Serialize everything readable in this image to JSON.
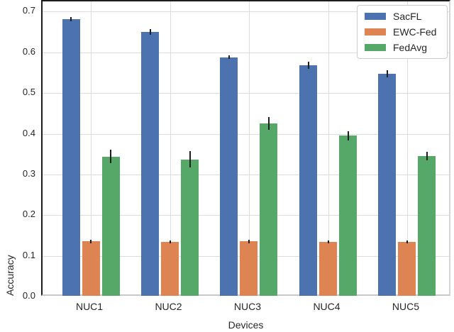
{
  "chart_data": {
    "type": "bar",
    "title": "",
    "xlabel": "Devices",
    "ylabel": "Accuracy",
    "categories": [
      "NUC1",
      "NUC2",
      "NUC3",
      "NUC4",
      "NUC5"
    ],
    "series": [
      {
        "name": "SacFL",
        "color": "#4C72B0",
        "values": [
          0.684,
          0.652,
          0.59,
          0.57,
          0.549
        ],
        "errors": [
          0.005,
          0.007,
          0.005,
          0.008,
          0.009
        ]
      },
      {
        "name": "EWC-Fed",
        "color": "#DD8452",
        "values": [
          0.137,
          0.136,
          0.137,
          0.136,
          0.136
        ],
        "errors": [
          0.004,
          0.004,
          0.004,
          0.004,
          0.004
        ]
      },
      {
        "name": "FedAvg",
        "color": "#55A868",
        "values": [
          0.346,
          0.339,
          0.427,
          0.397,
          0.347
        ],
        "errors": [
          0.017,
          0.02,
          0.015,
          0.011,
          0.01
        ]
      }
    ],
    "ylim": [
      0.0,
      0.727
    ],
    "yticks": [
      0.0,
      0.1,
      0.2,
      0.3,
      0.4,
      0.5,
      0.6,
      0.7
    ],
    "grid": true,
    "legend_position": "upper right",
    "error_bars": true
  },
  "style_colors": {
    "grid": "#dcdcdc",
    "text": "#262626",
    "error_bar": "#1f1f1f",
    "spine_dark": "#1c1c1c",
    "spine_light": "#d6d6d6",
    "background": "#ffffff"
  }
}
